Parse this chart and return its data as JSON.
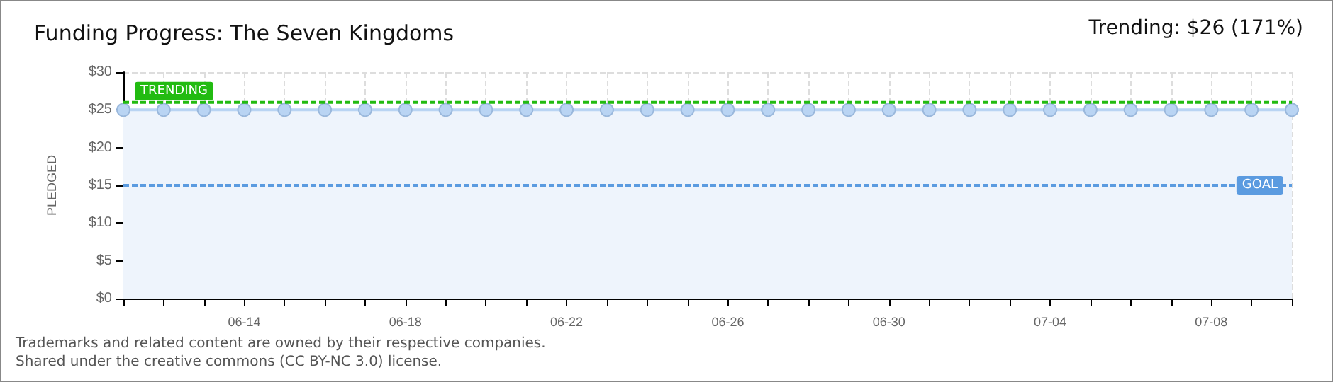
{
  "chart_data": {
    "type": "area",
    "title": "Funding Progress: The Seven Kingdoms",
    "ylabel": "PLEDGED",
    "categories": [
      null,
      null,
      null,
      "06-14",
      null,
      null,
      null,
      "06-18",
      null,
      null,
      null,
      "06-22",
      null,
      null,
      null,
      "06-26",
      null,
      null,
      null,
      "06-30",
      null,
      null,
      null,
      "07-04",
      null,
      null,
      null,
      "07-08",
      null,
      null
    ],
    "series": [
      {
        "color": "#b9d4f3",
        "values": [
          25,
          25,
          25,
          25,
          25,
          25,
          25,
          25,
          25,
          25,
          25,
          25,
          25,
          25,
          25,
          25,
          25,
          25,
          25,
          25,
          25,
          25,
          25,
          25,
          25,
          25,
          25,
          25,
          25,
          25
        ]
      }
    ],
    "ylim": [
      0,
      30
    ],
    "yticks": [
      {
        "value": 0,
        "label": "$0"
      },
      {
        "value": 5,
        "label": "$5"
      },
      {
        "value": 10,
        "label": "$10"
      },
      {
        "value": 15,
        "label": "$15"
      },
      {
        "value": 20,
        "label": "$20"
      },
      {
        "value": 25,
        "label": "$25"
      },
      {
        "value": 30,
        "label": "$30"
      }
    ],
    "ref_lines": [
      {
        "axis": "y",
        "value": 26,
        "label": "TRENDING",
        "color": "#22bb11",
        "line_style": "dashed"
      },
      {
        "axis": "y",
        "value": 15,
        "label": "GOAL",
        "color": "#5b9be0",
        "line_style": "dashed"
      }
    ],
    "annotations": [
      "Trending: $26 (171%)",
      "Trademarks and related content are owned by their respective companies.",
      "Shared under the creative commons (CC BY-NC 3.0) license."
    ],
    "grid": true,
    "marker": "circle",
    "line_style": "solid"
  }
}
